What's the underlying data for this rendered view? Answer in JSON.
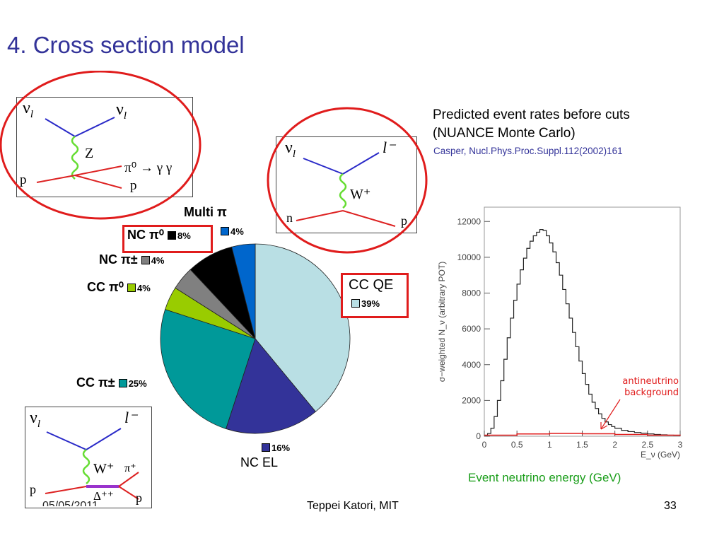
{
  "title": "4. Cross section model",
  "diagrams": {
    "nc_pi0": {
      "nu_in": "ν",
      "nu_in_sub": "l",
      "nu_out": "ν",
      "nu_out_sub": "l",
      "boson": "Z",
      "decay": "π⁰ → γ γ",
      "p_in": "p",
      "p_out": "p"
    },
    "ccqe": {
      "nu_in": "ν",
      "nu_in_sub": "l",
      "lepton": "l⁻",
      "boson": "W⁺",
      "n_in": "n",
      "p_out": "p"
    },
    "ccpi": {
      "nu_in": "ν",
      "nu_in_sub": "l",
      "lepton": "l⁻",
      "boson": "W⁺",
      "pi_out": "π⁺",
      "delta": "Δ⁺⁺",
      "p_in": "p",
      "p_out": "p"
    }
  },
  "text": {
    "rates_line1": "Predicted event rates before cuts",
    "rates_line2": "(NUANCE Monte Carlo)",
    "citation": "Casper, Nucl.Phys.Proc.Suppl.112(2002)161",
    "energy_caption": "Event neutrino energy (GeV)"
  },
  "pie_labels": {
    "multi": "Multi π",
    "multi_pct": "4%",
    "ncpi0": "NC π⁰",
    "ncpi0_pct": "8%",
    "ncpipm": "NC π±",
    "ncpipm_pct": "4%",
    "ccpi0": "CC π⁰",
    "ccpi0_pct": "4%",
    "ccqe": "CC QE",
    "ccqe_pct": "39%",
    "ccpipm": "CC π±",
    "ccpipm_pct": "25%",
    "ncel": "NC EL",
    "ncel_pct": "16%"
  },
  "colors": {
    "accent_title": "#333399",
    "red": "#e01c1c",
    "green_caption": "#1a9e1a",
    "ccqe": "#b9dfe4",
    "ncel": "#333399",
    "ccpipm": "#009999",
    "ccpi0": "#99cc00",
    "ncpipm": "#808080",
    "ncpi0": "#000000",
    "multi": "#0066cc"
  },
  "chart_data": [
    {
      "type": "pie",
      "slices": [
        {
          "label": "CC QE",
          "value": 39,
          "color": "#b9dfe4"
        },
        {
          "label": "NC EL",
          "value": 16,
          "color": "#333399"
        },
        {
          "label": "CC π±",
          "value": 25,
          "color": "#009999"
        },
        {
          "label": "CC π⁰",
          "value": 4,
          "color": "#99cc00"
        },
        {
          "label": "NC π±",
          "value": 4,
          "color": "#808080"
        },
        {
          "label": "NC π⁰",
          "value": 8,
          "color": "#000000"
        },
        {
          "label": "Multi π",
          "value": 4,
          "color": "#0066cc"
        }
      ]
    },
    {
      "type": "line",
      "ylabel": "σ−weighted N_ν (arbitrary POT)",
      "xlabel": "E_ν (GeV)",
      "xlim": [
        0,
        3
      ],
      "ylim": [
        0,
        12800
      ],
      "xticks": [
        "0",
        "0.5",
        "1",
        "1.5",
        "2",
        "2.5",
        "3"
      ],
      "yticks": [
        "0",
        "2000",
        "4000",
        "6000",
        "8000",
        "10000",
        "12000"
      ],
      "annotation": "antineutrino background",
      "series": [
        {
          "x": [
            0.0,
            0.05,
            0.1,
            0.15,
            0.2,
            0.25,
            0.3,
            0.35,
            0.4,
            0.45,
            0.5,
            0.55,
            0.6,
            0.65,
            0.7,
            0.75,
            0.8,
            0.85,
            0.9,
            0.95,
            1.0,
            1.05,
            1.1,
            1.15,
            1.2,
            1.25,
            1.3,
            1.35,
            1.4,
            1.45,
            1.5,
            1.55,
            1.6,
            1.65,
            1.7,
            1.75,
            1.8,
            1.85,
            1.9,
            1.95,
            2.0,
            2.1,
            2.2,
            2.3,
            2.4,
            2.5,
            2.6,
            2.7,
            2.8,
            2.9,
            3.0
          ],
          "values": [
            50,
            150,
            450,
            1100,
            2000,
            3100,
            4300,
            5500,
            6600,
            7600,
            8500,
            9300,
            9950,
            10500,
            10900,
            11200,
            11400,
            11550,
            11500,
            11200,
            10800,
            10300,
            9700,
            9000,
            8200,
            7400,
            6600,
            5800,
            5000,
            4200,
            3500,
            2900,
            2350,
            1900,
            1550,
            1250,
            1000,
            800,
            650,
            540,
            450,
            330,
            260,
            210,
            170,
            130,
            100,
            80,
            60,
            50,
            40
          ]
        },
        {
          "x": [
            0.0,
            0.5,
            1.0,
            1.5,
            2.0,
            2.5,
            3.0
          ],
          "values": [
            60,
            130,
            160,
            140,
            100,
            60,
            40
          ]
        }
      ]
    }
  ],
  "footer": {
    "date": "05/05/2011",
    "author": "Teppei Katori, MIT",
    "page": "33"
  }
}
